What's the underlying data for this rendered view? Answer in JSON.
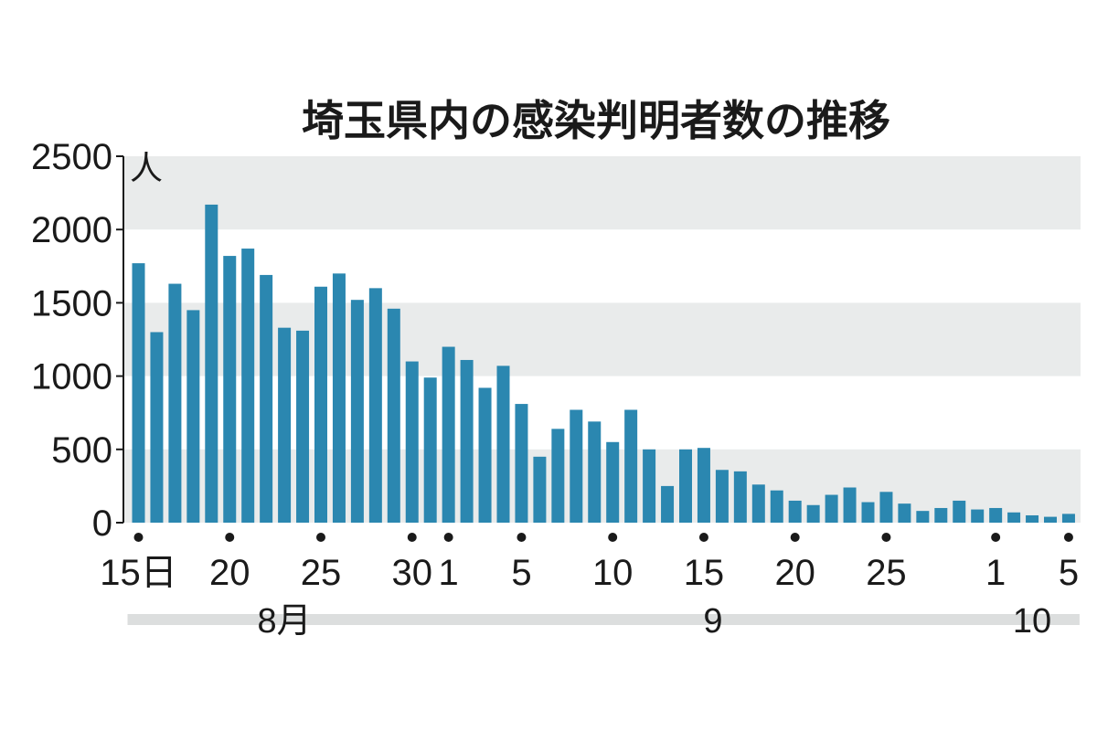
{
  "chart_data": {
    "type": "bar",
    "title": "埼玉県内の感染判明者数の推移",
    "y_unit": "人",
    "ylim": [
      0,
      2500
    ],
    "y_ticks": [
      "0",
      "500",
      "1000",
      "1500",
      "2000",
      "2500"
    ],
    "x": [
      "8/15",
      "8/16",
      "8/17",
      "8/18",
      "8/19",
      "8/20",
      "8/21",
      "8/22",
      "8/23",
      "8/24",
      "8/25",
      "8/26",
      "8/27",
      "8/28",
      "8/29",
      "8/30",
      "8/31",
      "9/1",
      "9/2",
      "9/3",
      "9/4",
      "9/5",
      "9/6",
      "9/7",
      "9/8",
      "9/9",
      "9/10",
      "9/11",
      "9/12",
      "9/13",
      "9/14",
      "9/15",
      "9/16",
      "9/17",
      "9/18",
      "9/19",
      "9/20",
      "9/21",
      "9/22",
      "9/23",
      "9/24",
      "9/25",
      "9/26",
      "9/27",
      "9/28",
      "9/29",
      "9/30",
      "10/1",
      "10/2",
      "10/3",
      "10/4",
      "10/5"
    ],
    "values": [
      1770,
      1300,
      1630,
      1450,
      2170,
      1820,
      1870,
      1690,
      1330,
      1310,
      1610,
      1700,
      1520,
      1600,
      1460,
      1100,
      990,
      1200,
      1110,
      920,
      1070,
      810,
      450,
      640,
      770,
      690,
      550,
      770,
      500,
      250,
      500,
      510,
      360,
      350,
      260,
      220,
      150,
      120,
      190,
      240,
      140,
      210,
      130,
      80,
      100,
      150,
      90,
      100,
      70,
      50,
      40,
      60
    ],
    "x_tick_labels": [
      {
        "index": 0,
        "label": "15日",
        "dot": true
      },
      {
        "index": 5,
        "label": "20",
        "dot": true
      },
      {
        "index": 10,
        "label": "25",
        "dot": true
      },
      {
        "index": 15,
        "label": "30",
        "dot": true
      },
      {
        "index": 17,
        "label": "1",
        "dot": true
      },
      {
        "index": 21,
        "label": "5",
        "dot": true
      },
      {
        "index": 26,
        "label": "10",
        "dot": true
      },
      {
        "index": 31,
        "label": "15",
        "dot": true
      },
      {
        "index": 36,
        "label": "20",
        "dot": true
      },
      {
        "index": 41,
        "label": "25",
        "dot": true
      },
      {
        "index": 47,
        "label": "1",
        "dot": true
      },
      {
        "index": 51,
        "label": "5",
        "dot": true
      }
    ],
    "month_groups": [
      {
        "label": "8月",
        "start": 0,
        "end": 16
      },
      {
        "label": "9",
        "start": 17,
        "end": 46
      },
      {
        "label": "10",
        "start": 47,
        "end": 51
      }
    ],
    "colors": {
      "bar": "#2b87b0",
      "band": "#e9ebeb",
      "month_bar": "#dcdede",
      "text": "#1a1a1a"
    },
    "grid": "alternating horizontal bands"
  }
}
